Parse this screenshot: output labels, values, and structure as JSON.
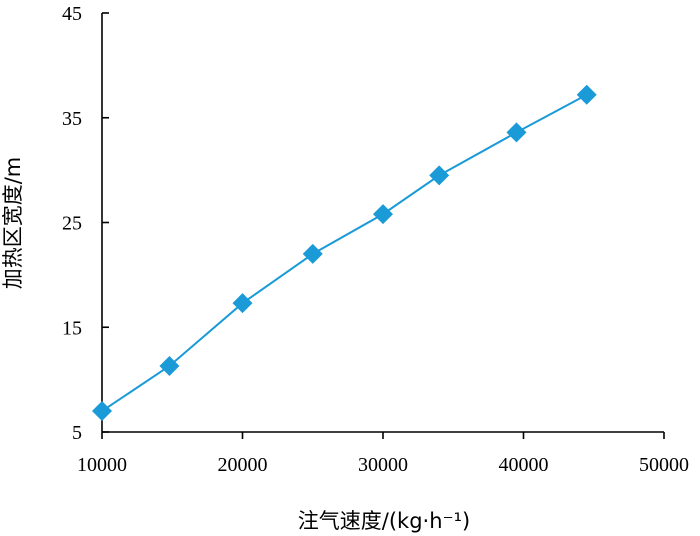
{
  "chart_data": {
    "type": "line",
    "title": "",
    "xlabel": "注气速度/(kg·h⁻¹)",
    "ylabel": "加热区宽度/m",
    "xlim": [
      10000,
      50000
    ],
    "ylim": [
      5,
      45
    ],
    "x_ticks": [
      "10000",
      "20000",
      "30000",
      "40000",
      "50000"
    ],
    "y_ticks": [
      "5",
      "15",
      "25",
      "35",
      "45"
    ],
    "grid": false,
    "legend": "none",
    "series": [
      {
        "marker": "diamond",
        "color": "#1a9bd7",
        "x": [
          10000,
          14800,
          20000,
          25000,
          30000,
          34000,
          39500,
          44500
        ],
        "y": [
          7.0,
          11.3,
          17.3,
          22.0,
          25.8,
          29.5,
          33.6,
          37.2
        ]
      }
    ]
  }
}
